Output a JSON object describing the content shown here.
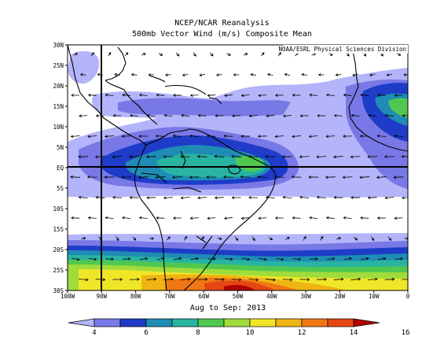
{
  "header": {
    "title": "NCEP/NCAR Reanalysis",
    "subtitle": "500mb Vector Wind (m/s) Composite Mean"
  },
  "credit": "NOAA/ESRL Physical Sciences Division",
  "date_range": "Aug to Sep: 2013",
  "map": {
    "lat_labels": [
      "30N",
      "25N",
      "20N",
      "15N",
      "10N",
      "5N",
      "EQ",
      "5S",
      "10S",
      "15S",
      "20S",
      "25S",
      "30S"
    ],
    "lon_labels": [
      "100W",
      "90W",
      "80W",
      "70W",
      "60W",
      "50W",
      "40W",
      "30W",
      "20W",
      "10W",
      "0"
    ]
  },
  "colorbar": {
    "tick_labels": [
      "4",
      "6",
      "8",
      "10",
      "12",
      "14",
      "16"
    ],
    "colors": [
      "#b4b4fa",
      "#7878e6",
      "#1e3cc8",
      "#1e8cb4",
      "#28b4a0",
      "#50c850",
      "#a0dc3c",
      "#f0e628",
      "#f0b414",
      "#f07814",
      "#e64614",
      "#b40000"
    ]
  }
}
